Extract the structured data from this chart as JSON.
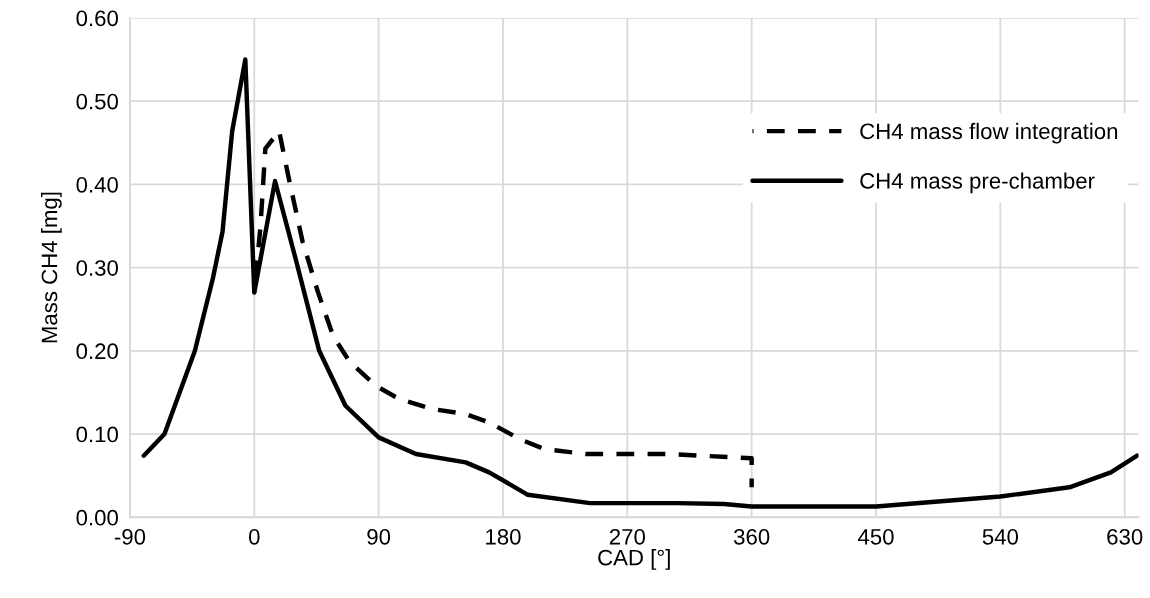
{
  "chart_data": {
    "type": "line",
    "xlabel": "CAD [°]",
    "ylabel": "Mass CH4 [mg]",
    "xlim": [
      -90,
      640
    ],
    "xticks": [
      -90,
      0,
      90,
      180,
      270,
      360,
      450,
      540,
      630
    ],
    "ylim": [
      0,
      0.6
    ],
    "yticks": [
      {
        "value": 0,
        "label": "0.00"
      },
      {
        "value": 0.1,
        "label": "0.10"
      },
      {
        "value": 0.2,
        "label": "0.20"
      },
      {
        "value": 0.3,
        "label": "0.30"
      },
      {
        "value": 0.4,
        "label": "0.40"
      },
      {
        "value": 0.5,
        "label": "0.50"
      },
      {
        "value": 0.6,
        "label": "0.60"
      }
    ],
    "grid": true,
    "legend": "top right",
    "series": [
      {
        "name": "CH4 mass flow integration",
        "color": "#000000",
        "line_style": "dashed",
        "x": [
          0,
          4.5,
          8,
          18,
          25,
          35,
          46,
          57,
          69,
          88,
          105,
          129,
          153,
          170,
          192,
          210,
          240,
          301,
          346,
          360,
          360
        ],
        "values": [
          0.27,
          0.35,
          0.443,
          0.464,
          0.407,
          0.331,
          0.271,
          0.218,
          0.187,
          0.158,
          0.142,
          0.13,
          0.124,
          0.114,
          0.094,
          0.082,
          0.076,
          0.076,
          0.072,
          0.071,
          0.036
        ]
      },
      {
        "name": "CH4 mass pre-chamber",
        "color": "#000000",
        "line_style": "solid",
        "x": [
          -80,
          -65,
          -43,
          -30,
          -23,
          -16,
          -6.5,
          0,
          15,
          30,
          47,
          66,
          90,
          117,
          153,
          170,
          198,
          243,
          306,
          340,
          360,
          450,
          540,
          590,
          620,
          639
        ],
        "values": [
          0.074,
          0.1,
          0.2,
          0.287,
          0.343,
          0.464,
          0.55,
          0.27,
          0.404,
          0.31,
          0.2,
          0.134,
          0.096,
          0.076,
          0.066,
          0.054,
          0.027,
          0.017,
          0.017,
          0.016,
          0.013,
          0.013,
          0.025,
          0.036,
          0.054,
          0.074
        ]
      }
    ]
  }
}
